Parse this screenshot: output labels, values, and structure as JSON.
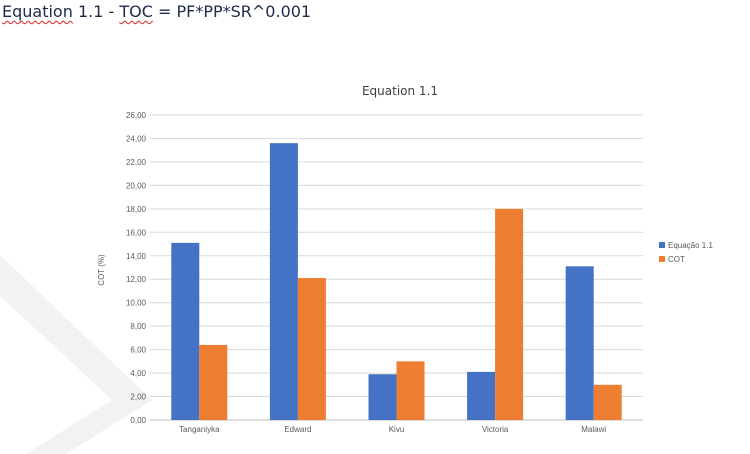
{
  "document": {
    "heading_parts": [
      "Equation",
      " 1.1 - ",
      "TOC",
      " = PF*PP*SR^0.001"
    ]
  },
  "colors": {
    "series1": "#4472c4",
    "series2": "#ed7d31",
    "grid": "#d9d9d9",
    "watermark": "#f2f2f2"
  },
  "chart_data": {
    "type": "bar",
    "title": "Equation 1.1",
    "xlabel": "",
    "ylabel": "COT (%)",
    "categories": [
      "Tanganiyka",
      "Edward",
      "Kivu",
      "Victoria",
      "Malawi"
    ],
    "series": [
      {
        "name": "Equação 1.1",
        "values": [
          15.1,
          23.6,
          3.9,
          4.1,
          13.1
        ]
      },
      {
        "name": "COT",
        "values": [
          6.4,
          12.1,
          5.0,
          18.0,
          3.0
        ]
      }
    ],
    "ylim": [
      0,
      26
    ],
    "yticks": [
      "0,00",
      "2,00",
      "4,00",
      "6,00",
      "8,00",
      "10,00",
      "12,00",
      "14,00",
      "16,00",
      "18,00",
      "20,00",
      "22,00",
      "24,00",
      "26,00"
    ],
    "grid": true,
    "legend_position": "right"
  }
}
